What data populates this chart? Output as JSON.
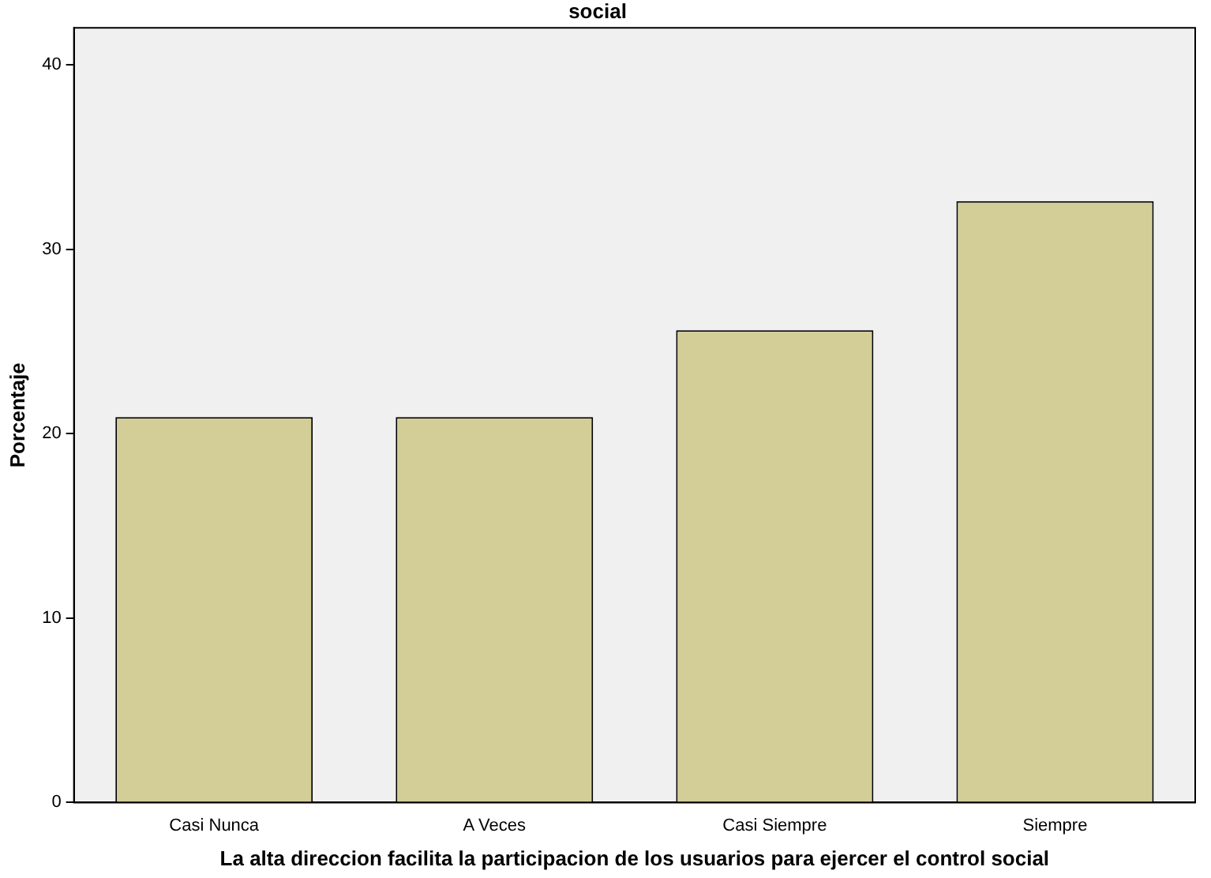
{
  "chart_data": {
    "type": "bar",
    "title": "social",
    "xlabel": "La alta direccion facilita la participacion de los usuarios para ejercer el control social",
    "ylabel": "Porcentaje",
    "categories": [
      "Casi Nunca",
      "A Veces",
      "Casi Siempre",
      "Siempre"
    ],
    "values": [
      20.9,
      20.9,
      25.6,
      32.6
    ],
    "color": "#d3ce97",
    "ylim": [
      0,
      42
    ],
    "yticks": [
      0,
      10,
      20,
      30,
      40
    ],
    "grid": false,
    "legend": false
  }
}
